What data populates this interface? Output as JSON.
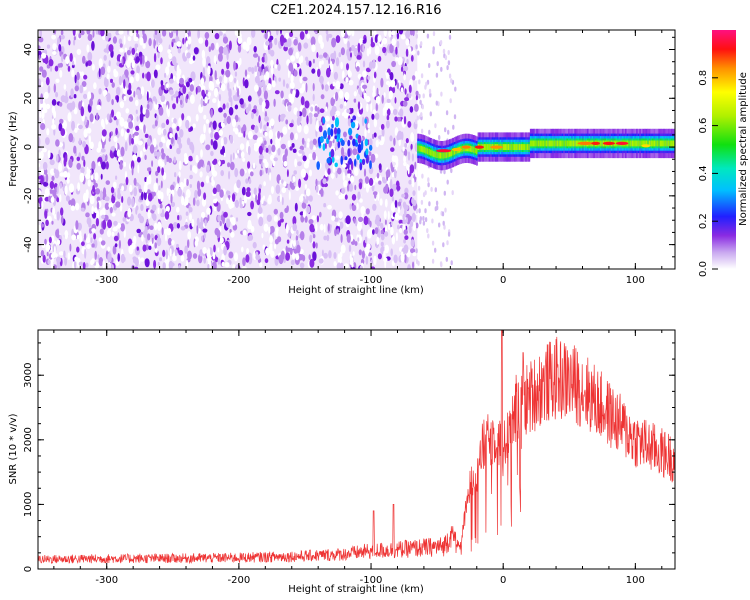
{
  "title": "C2E1.2024.157.12.16.R16",
  "chart_data": [
    {
      "type": "heatmap",
      "xlabel": "Height of straight line (km)",
      "ylabel": "Frequency (Hz)",
      "xlim": [
        -352,
        130
      ],
      "ylim": [
        -50,
        48
      ],
      "xticks": [
        -300,
        -200,
        -100,
        0,
        100
      ],
      "yticks": [
        -40,
        -20,
        0,
        20,
        40
      ],
      "grid": false,
      "colorbar": {
        "label": "Normalized spectral amplitude",
        "range": [
          0,
          1
        ],
        "ticks": [
          0.0,
          0.2,
          0.4,
          0.6,
          0.8
        ]
      },
      "regions": [
        {
          "x_range": [
            -352,
            -65
          ],
          "freq_range": [
            -50,
            48
          ],
          "amplitude": 0.1
        },
        {
          "x_range": [
            -140,
            -100
          ],
          "freq_range": [
            -8,
            12
          ],
          "amplitude": 0.2
        },
        {
          "x_range": [
            -65,
            130
          ],
          "freq_range": [
            -4,
            4
          ],
          "amplitude": 0.5
        },
        {
          "x_range": [
            -45,
            -25
          ],
          "freq_range": [
            -3,
            3
          ],
          "amplitude": 0.9
        },
        {
          "x_range": [
            60,
            100
          ],
          "freq_range": [
            1,
            3
          ],
          "amplitude": 0.95
        }
      ]
    },
    {
      "type": "line",
      "xlabel": "Height of straight line (km)",
      "ylabel": "SNR (10 * v/v)",
      "xlim": [
        -352,
        130
      ],
      "ylim": [
        0,
        3700
      ],
      "xticks": [
        -300,
        -200,
        -100,
        0,
        100
      ],
      "yticks": [
        0,
        1000,
        2000,
        3000
      ],
      "color": "#ee3333",
      "grid": false,
      "trend": {
        "x": [
          -352,
          -300,
          -250,
          -200,
          -150,
          -120,
          -100,
          -80,
          -60,
          -45,
          -38,
          -33,
          -25,
          -15,
          -5,
          0,
          5,
          10,
          20,
          30,
          40,
          50,
          60,
          70,
          80,
          90,
          100,
          110,
          120,
          130
        ],
        "y": [
          150,
          160,
          165,
          175,
          200,
          230,
          280,
          300,
          330,
          350,
          600,
          300,
          1300,
          1900,
          2100,
          1800,
          2300,
          2500,
          2650,
          2850,
          2950,
          2900,
          2800,
          2600,
          2400,
          2200,
          2000,
          1900,
          1800,
          1700
        ]
      },
      "spikes": [
        {
          "x": -98,
          "y": 900
        },
        {
          "x": -83,
          "y": 1000
        },
        {
          "x": -1,
          "y": 3700
        },
        {
          "x": 15,
          "y": 3350
        }
      ]
    }
  ]
}
